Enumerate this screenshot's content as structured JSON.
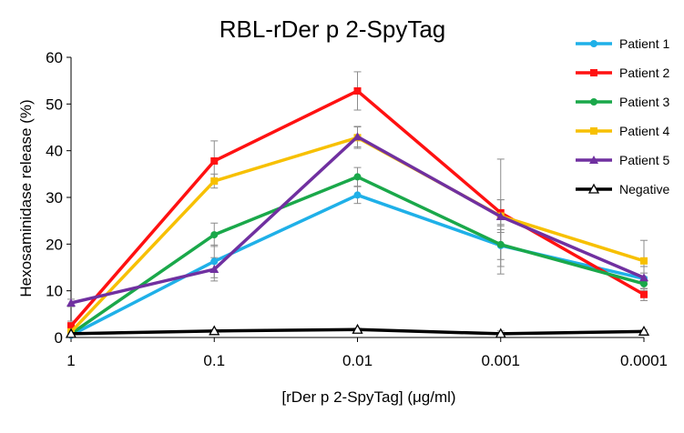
{
  "chart_data": {
    "type": "line",
    "title": "RBL-rDer p 2-SpyTag",
    "xlabel": "[rDer p 2-SpyTag]  (μg/ml)",
    "ylabel": "Hexosaminidase release (%)",
    "x_scale": "log",
    "x_reversed": true,
    "categories": [
      "1",
      "0.1",
      "0.01",
      "0.001",
      "0.0001"
    ],
    "x": [
      1,
      0.1,
      0.01,
      0.001,
      0.0001
    ],
    "ylim": [
      0,
      60
    ],
    "yticks": [
      0,
      10,
      20,
      30,
      40,
      50,
      60
    ],
    "grid": false,
    "legend_position": "top-right",
    "series": [
      {
        "name": "Patient 1",
        "color": "#1fb0e8",
        "marker": "circle",
        "values": [
          0.5,
          16.3,
          30.5,
          19.7,
          12.6
        ],
        "errors": [
          0.5,
          3.5,
          1.8,
          4.5,
          1.2
        ]
      },
      {
        "name": "Patient 2",
        "color": "#ff1111",
        "marker": "square",
        "values": [
          2.5,
          37.8,
          52.8,
          26.7,
          9.2
        ],
        "errors": [
          1.0,
          4.3,
          4.1,
          2.8,
          1.3
        ]
      },
      {
        "name": "Patient 3",
        "color": "#1aa84a",
        "marker": "circle",
        "values": [
          0.8,
          22.0,
          34.4,
          19.9,
          11.5
        ],
        "errors": [
          0.6,
          2.5,
          2.0,
          3.2,
          1.5
        ]
      },
      {
        "name": "Patient 4",
        "color": "#f7c000",
        "marker": "square",
        "values": [
          1.2,
          33.5,
          42.8,
          26.0,
          16.4
        ],
        "errors": [
          0.8,
          1.5,
          2.3,
          3.5,
          4.4
        ]
      },
      {
        "name": "Patient 5",
        "color": "#7030a0",
        "marker": "triangle",
        "values": [
          7.4,
          14.6,
          43.0,
          25.9,
          12.8
        ],
        "errors": [
          0.8,
          2.5,
          2.2,
          12.3,
          2.4
        ]
      },
      {
        "name": "Negative",
        "color": "#000000",
        "marker": "triangle-open",
        "values": [
          0.8,
          1.4,
          1.7,
          0.8,
          1.3
        ],
        "errors": [
          0.2,
          0.3,
          0.3,
          0.6,
          0.3
        ]
      }
    ]
  }
}
